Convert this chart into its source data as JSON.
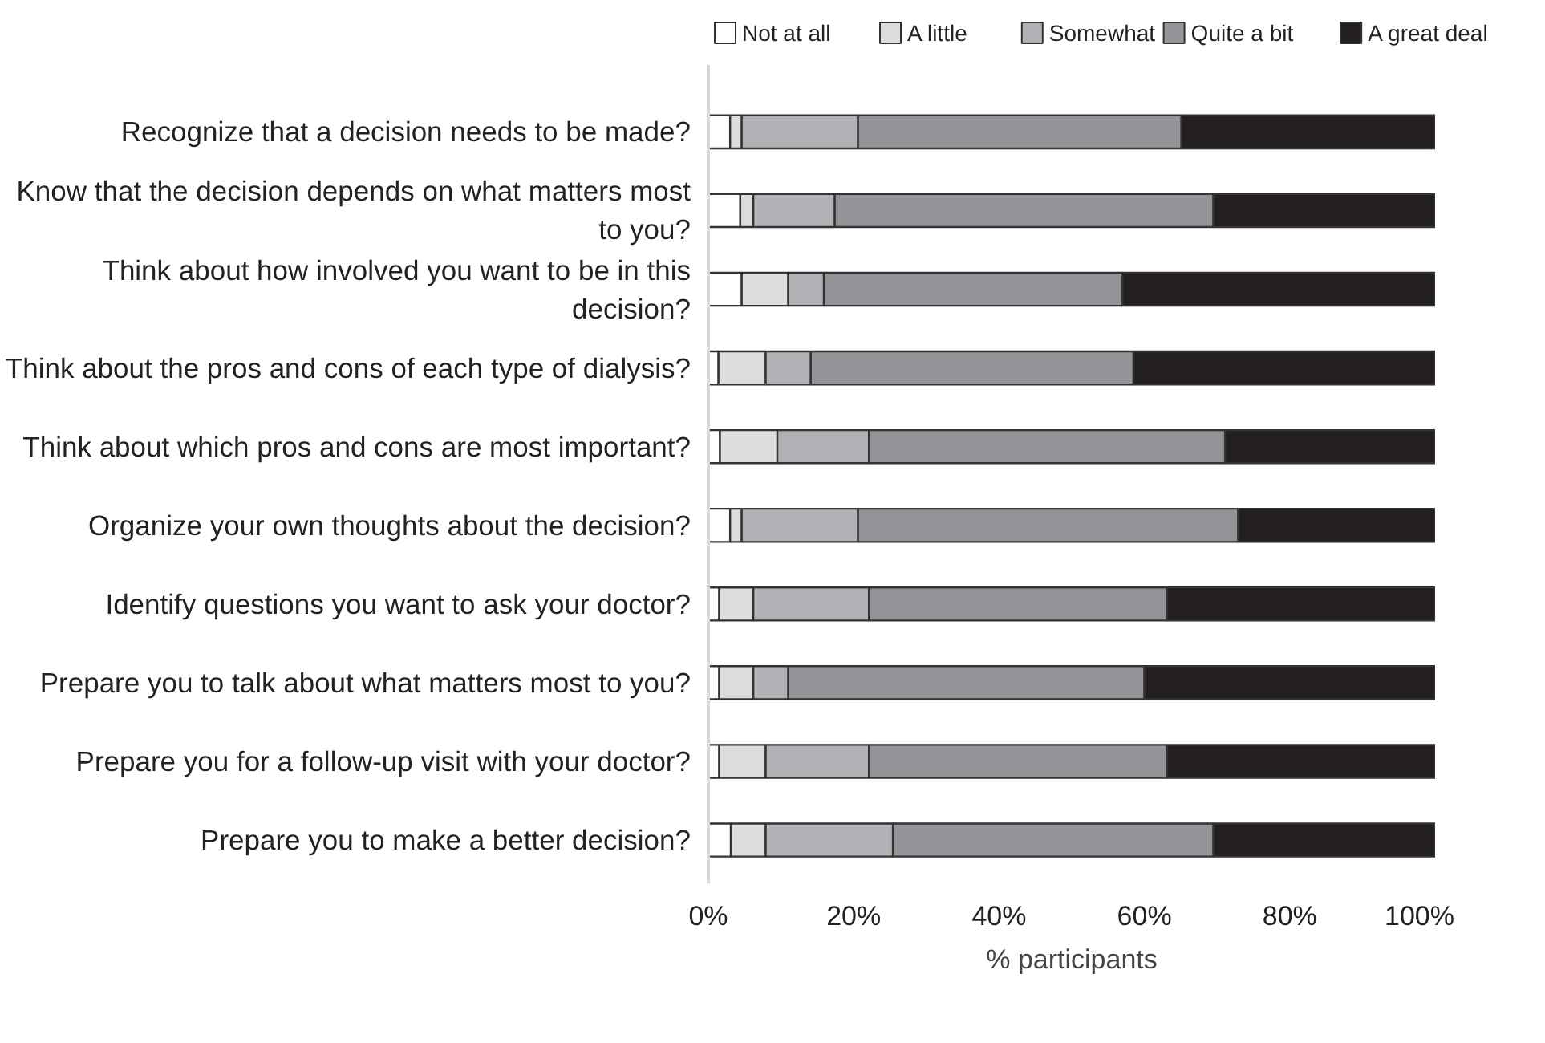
{
  "chart_data": {
    "type": "bar",
    "orientation": "horizontal",
    "stacked": true,
    "xlabel": "% participants",
    "legend": "top",
    "categories": [
      "Recognize that a decision needs to be made?",
      "Know that the decision depends on what matters most to you?",
      "Think about how involved you want to be in this decision?",
      "Think about the pros and cons of each type of dialysis?",
      "Think about which pros and cons are most important?",
      "Organize your own thoughts about the decision?",
      "Identify questions you want to ask your doctor?",
      "Prepare you to talk about what matters most to you?",
      "Prepare you for a follow-up visit with your doctor?",
      "Prepare you to make a better decision?"
    ],
    "series": [
      {
        "name": "Not at all",
        "color": "#ffffff",
        "values": [
          3,
          4.4,
          4.6,
          1.4,
          1.6,
          3,
          1.5,
          1.5,
          1.5,
          3.1
        ]
      },
      {
        "name": "A little",
        "color": "#dcdddf",
        "values": [
          1.6,
          1.8,
          6.4,
          6.5,
          7.9,
          1.6,
          4.7,
          4.7,
          6.4,
          4.8
        ]
      },
      {
        "name": "Somewhat",
        "color": "#b1b2b5",
        "values": [
          16,
          11.2,
          4.9,
          6.2,
          12.6,
          16,
          15.9,
          4.8,
          14.2,
          17.5
        ]
      },
      {
        "name": "Quite a bit",
        "color": "#939497",
        "values": [
          44.5,
          52.1,
          41.1,
          44.4,
          49,
          52.3,
          41,
          49,
          41,
          44.1
        ]
      },
      {
        "name": "A great deal",
        "color": "#231f20",
        "values": [
          34.9,
          30.5,
          43,
          41.5,
          28.9,
          27.1,
          36.9,
          40,
          36.9,
          30.5
        ]
      }
    ],
    "xlim": [
      0,
      100
    ],
    "xticks": [
      {
        "value": 0,
        "label": "0%"
      },
      {
        "value": 20,
        "label": "20%"
      },
      {
        "value": 40,
        "label": "40%"
      },
      {
        "value": 60,
        "label": "60%"
      },
      {
        "value": 80,
        "label": "80%"
      },
      {
        "value": 100,
        "label": "100%"
      }
    ],
    "grid": false
  }
}
